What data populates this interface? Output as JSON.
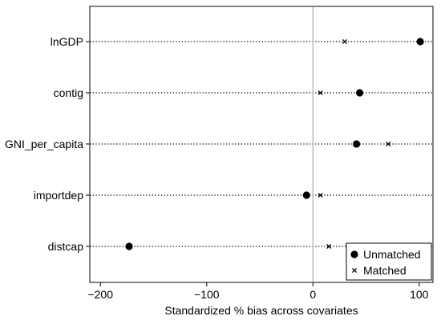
{
  "chart_data": {
    "type": "scatter",
    "title": "",
    "xlabel": "Standardized % bias across covariates",
    "ylabel": "",
    "xlim": [
      -210,
      113
    ],
    "xticks": [
      -200,
      -100,
      0,
      100
    ],
    "xtick_labels": [
      "−200",
      "−100",
      "0",
      "100"
    ],
    "categories": [
      "lnGDP",
      "contig",
      "GNI_per_capita",
      "importdep",
      "distcap"
    ],
    "series": [
      {
        "name": "Unmatched",
        "marker": "filled-circle",
        "values": [
          101,
          44,
          41,
          -6,
          -173
        ]
      },
      {
        "name": "Matched",
        "marker": "x",
        "values": [
          30,
          7,
          71,
          7,
          15
        ]
      }
    ],
    "reference_line_x": 0,
    "grid": false,
    "category_guides": "dotted",
    "legend_position": "bottom-right",
    "colors": {
      "markers": "#000000",
      "reference_line": "#9a9a9a",
      "frame": "#000000"
    }
  }
}
